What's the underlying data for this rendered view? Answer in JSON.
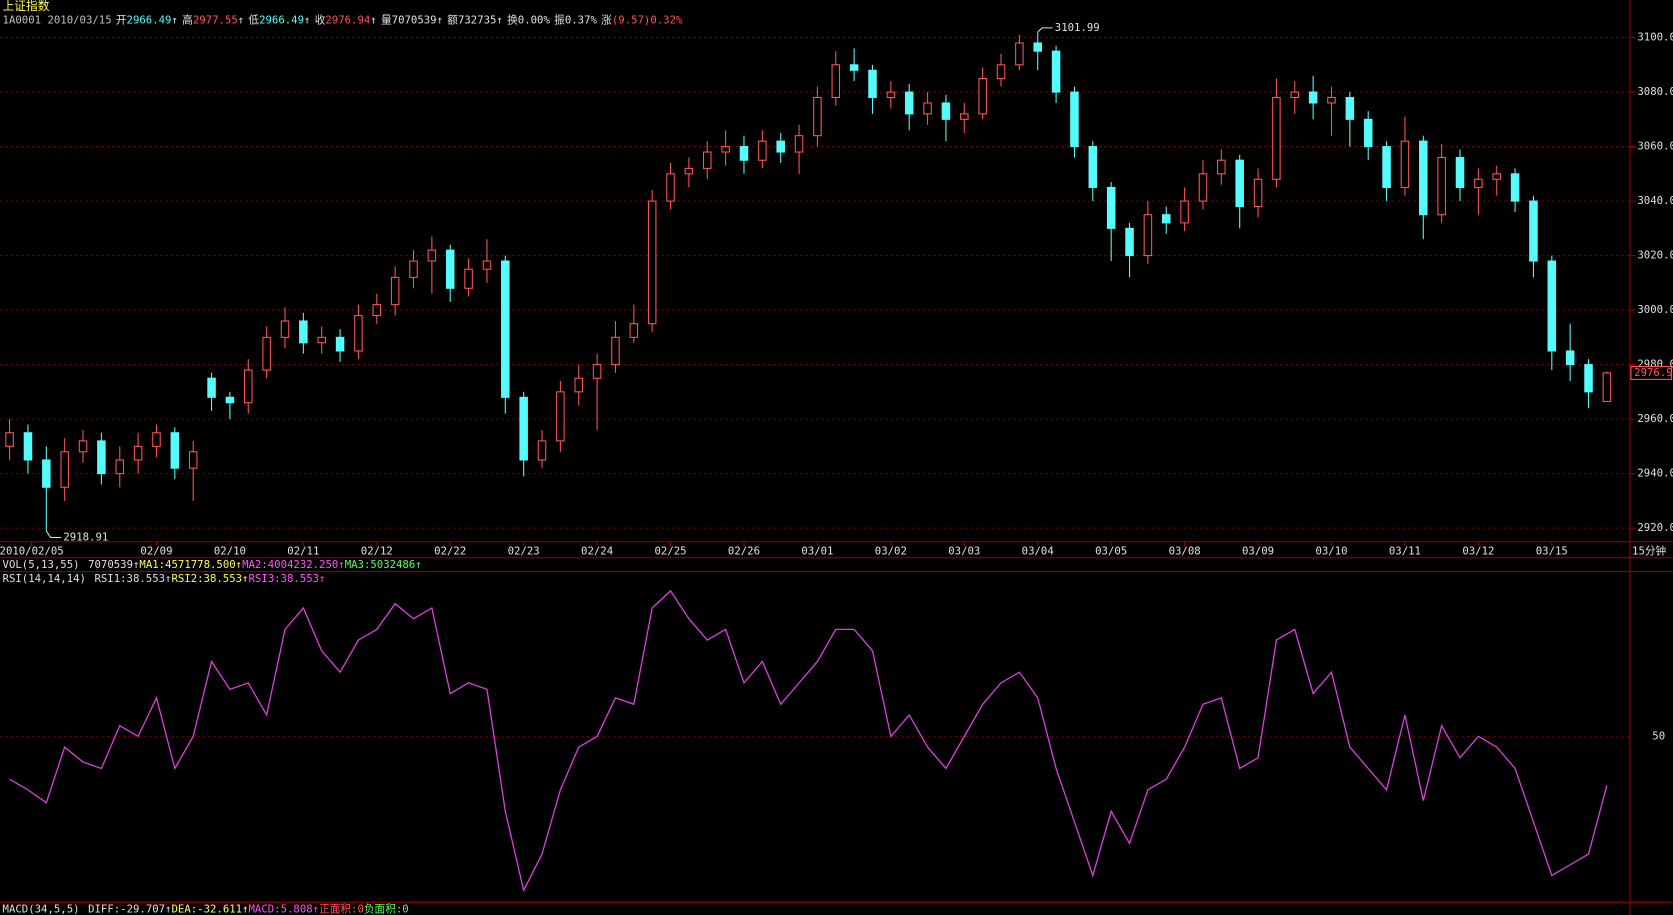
{
  "chart_data": {
    "type": "candlestick",
    "title": "上证指数",
    "header": {
      "code": "1A0001",
      "date": "2010/03/15",
      "arrow": "↑",
      "quote": [
        {
          "label": "开",
          "value": "2966.49",
          "color": "#54fcfc",
          "arrow": true
        },
        {
          "label": "高",
          "value": "2977.55",
          "color": "#ff5454",
          "arrow": true
        },
        {
          "label": "低",
          "value": "2966.49",
          "color": "#54fcfc",
          "arrow": true
        },
        {
          "label": "收",
          "value": "2976.94",
          "color": "#ff5454",
          "arrow": true
        },
        {
          "label": "量",
          "value": "7070539",
          "color": "#e0e0e0",
          "arrow": true
        },
        {
          "label": "额",
          "value": "732735",
          "color": "#e0e0e0",
          "arrow": true
        },
        {
          "label": "换",
          "value": "0.00%",
          "color": "#e0e0e0",
          "arrow": false
        },
        {
          "label": "振",
          "value": "0.37%",
          "color": "#e0e0e0",
          "arrow": false
        },
        {
          "label": "涨",
          "value": "(9.57)0.32%",
          "color": "#ff5454",
          "arrow": false
        }
      ]
    },
    "period": "15分钟",
    "up_color": "#ff5454",
    "down_color": "#54fcfc",
    "xlim": [
      -0.5,
      87.5
    ],
    "xticks": [
      {
        "value": 1.2,
        "label": "2010/02/05"
      },
      {
        "value": 8,
        "label": "02/09"
      },
      {
        "value": 12,
        "label": "02/10"
      },
      {
        "value": 16,
        "label": "02/11"
      },
      {
        "value": 20,
        "label": "02/12"
      },
      {
        "value": 24,
        "label": "02/22"
      },
      {
        "value": 28,
        "label": "02/23"
      },
      {
        "value": 32,
        "label": "02/24"
      },
      {
        "value": 36,
        "label": "02/25"
      },
      {
        "value": 40,
        "label": "02/26"
      },
      {
        "value": 44,
        "label": "03/01"
      },
      {
        "value": 48,
        "label": "03/02"
      },
      {
        "value": 52,
        "label": "03/03"
      },
      {
        "value": 56,
        "label": "03/04"
      },
      {
        "value": 60,
        "label": "03/05"
      },
      {
        "value": 64,
        "label": "03/08"
      },
      {
        "value": 68,
        "label": "03/09"
      },
      {
        "value": 72,
        "label": "03/10"
      },
      {
        "value": 76,
        "label": "03/11"
      },
      {
        "value": 80,
        "label": "03/12"
      },
      {
        "value": 84,
        "label": "03/15"
      }
    ],
    "ylim": [
      2915,
      3104
    ],
    "yticks": [
      {
        "value": 2920,
        "label": "2920.00"
      },
      {
        "value": 2940,
        "label": "2940.00"
      },
      {
        "value": 2960,
        "label": "2960.00"
      },
      {
        "value": 2980,
        "label": "2980.00"
      },
      {
        "value": 3000,
        "label": "3000.00"
      },
      {
        "value": 3020,
        "label": "3020.00"
      },
      {
        "value": 3040,
        "label": "3040.00"
      },
      {
        "value": 3060,
        "label": "3060.00"
      },
      {
        "value": 3080,
        "label": "3080.00"
      },
      {
        "value": 3100,
        "label": "3100.00"
      }
    ],
    "grid": true,
    "open": [
      2950,
      2955,
      2945,
      2935,
      2948,
      2952,
      2940,
      2945,
      2950,
      2955,
      2942,
      2975,
      2968,
      2966,
      2978,
      2990,
      2996,
      2988,
      2990,
      2985,
      2998,
      3002,
      3012,
      3018,
      3022,
      3008,
      3015,
      3018,
      2968,
      2945,
      2952,
      2970,
      2975,
      2980,
      2990,
      2995,
      3040,
      3050,
      3052,
      3058,
      3060,
      3055,
      3062,
      3058,
      3064,
      3078,
      3090,
      3088,
      3078,
      3080,
      3072,
      3076,
      3070,
      3072,
      3085,
      3090,
      3098,
      3095,
      3080,
      3060,
      3045,
      3030,
      3020,
      3035,
      3032,
      3040,
      3050,
      3055,
      3038,
      3048,
      3078,
      3080,
      3076,
      3078,
      3070,
      3060,
      3045,
      3062,
      3035,
      3056,
      3045,
      3048,
      3050,
      3040,
      3018,
      2985,
      2980,
      2966.49
    ],
    "high": [
      2960,
      2958,
      2950,
      2953,
      2956,
      2955,
      2950,
      2955,
      2958,
      2957,
      2952,
      2977,
      2970,
      2982,
      2994,
      3001,
      2999,
      2994,
      2993,
      3002,
      3006,
      3016,
      3022,
      3027,
      3024,
      3019,
      3026,
      3020,
      2970,
      2956,
      2974,
      2980,
      2984,
      2996,
      3002,
      3044,
      3054,
      3056,
      3062,
      3066,
      3064,
      3066,
      3065,
      3068,
      3082,
      3095,
      3096,
      3090,
      3084,
      3083,
      3080,
      3079,
      3076,
      3089,
      3094,
      3101,
      3101.99,
      3097,
      3082,
      3062,
      3047,
      3032,
      3040,
      3038,
      3045,
      3055,
      3059,
      3057,
      3052,
      3085,
      3084,
      3086,
      3082,
      3080,
      3073,
      3062,
      3071,
      3064,
      3061,
      3059,
      3052,
      3053,
      3052,
      3042,
      3020,
      2995,
      2982,
      2977.55
    ],
    "low": [
      2945,
      2940,
      2918.91,
      2930,
      2944,
      2936,
      2935,
      2940,
      2946,
      2938,
      2930,
      2963,
      2960,
      2962,
      2975,
      2986,
      2984,
      2984,
      2981,
      2982,
      2995,
      2998,
      3008,
      3006,
      3003,
      3005,
      3010,
      2962,
      2939,
      2942,
      2948,
      2965,
      2956,
      2977,
      2988,
      2992,
      3037,
      3045,
      3048,
      3053,
      3050,
      3052,
      3054,
      3050,
      3060,
      3075,
      3084,
      3072,
      3074,
      3066,
      3068,
      3062,
      3065,
      3070,
      3082,
      3088,
      3088,
      3076,
      3056,
      3040,
      3018,
      3012,
      3017,
      3028,
      3029,
      3037,
      3046,
      3030,
      3034,
      3045,
      3072,
      3070,
      3064,
      3060,
      3055,
      3040,
      3042,
      3026,
      3032,
      3040,
      3035,
      3042,
      3036,
      3012,
      2978,
      2974,
      2964,
      2966.49
    ],
    "close": [
      2955,
      2945,
      2935,
      2948,
      2952,
      2940,
      2945,
      2950,
      2955,
      2942,
      2948,
      2968,
      2966,
      2978,
      2990,
      2996,
      2988,
      2990,
      2985,
      2998,
      3002,
      3012,
      3018,
      3022,
      3008,
      3015,
      3018,
      2968,
      2945,
      2952,
      2970,
      2975,
      2980,
      2990,
      2995,
      3040,
      3050,
      3052,
      3058,
      3060,
      3055,
      3062,
      3058,
      3064,
      3078,
      3090,
      3088,
      3078,
      3080,
      3072,
      3076,
      3070,
      3072,
      3085,
      3090,
      3098,
      3095,
      3080,
      3060,
      3045,
      3030,
      3020,
      3035,
      3032,
      3040,
      3050,
      3055,
      3038,
      3048,
      3078,
      3080,
      3076,
      3078,
      3070,
      3060,
      3045,
      3062,
      3035,
      3056,
      3045,
      3048,
      3050,
      3040,
      3018,
      2985,
      2980,
      2970,
      2976.94
    ],
    "last_price_label": "2976.9",
    "vol": {
      "name": "VOL(5,13,55)",
      "items": [
        {
          "text": "7070539",
          "color": "#e0e0e0"
        },
        {
          "text": "MA1:4571778.500",
          "color": "#ffff54"
        },
        {
          "text": "MA2:4004232.250",
          "color": "#ff54ff"
        },
        {
          "text": "MA3:5032486",
          "color": "#54ff54"
        }
      ]
    },
    "rsi": {
      "name": "RSI(14,14,14)",
      "items": [
        {
          "text": "RSI1:38.553",
          "color": "#e0e0e0"
        },
        {
          "text": "RSI2:38.553",
          "color": "#ffff54"
        },
        {
          "text": "RSI3:38.553",
          "color": "#ff54ff"
        }
      ],
      "color": "#e040e0",
      "ylim": [
        11.25,
        88.5
      ],
      "yticks": [
        50
      ],
      "values": [
        40,
        37.5,
        34.5,
        47.5,
        44,
        42.5,
        52.5,
        50,
        59,
        42.5,
        50,
        67.5,
        61,
        62.5,
        55,
        75,
        80,
        70,
        65,
        72.5,
        75,
        81,
        77.5,
        80,
        60,
        62.5,
        61,
        32.5,
        14,
        22.5,
        37.5,
        47.5,
        50,
        59,
        57.5,
        80,
        84,
        77.5,
        72.5,
        75,
        62.5,
        67.5,
        57.5,
        62.5,
        67.5,
        75,
        75,
        70,
        50,
        55,
        47.5,
        42.5,
        50,
        57.5,
        62.5,
        65,
        59,
        42.5,
        30,
        17.5,
        32.5,
        25,
        37.5,
        40,
        47.5,
        57.5,
        59,
        42.5,
        45,
        72.5,
        75,
        60,
        65,
        47.5,
        42.5,
        37.5,
        55,
        35,
        52.5,
        45,
        50,
        47.5,
        42.5,
        30,
        17.5,
        20,
        22.5,
        38.553
      ]
    },
    "macd": {
      "name": "MACD(34,5,5)",
      "items": [
        {
          "text": "DIFF:-29.707",
          "color": "#e0e0e0",
          "arrow": true
        },
        {
          "text": "DEA:-32.611",
          "color": "#ffff54",
          "arrow": true
        },
        {
          "text": "MACD:5.808",
          "color": "#ff54ff",
          "arrow": true
        },
        {
          "text": "正面积:0",
          "color": "#ff5454",
          "arrow": false
        },
        {
          "text": "负面积:0",
          "color": "#54ff54",
          "arrow": false
        }
      ]
    }
  }
}
